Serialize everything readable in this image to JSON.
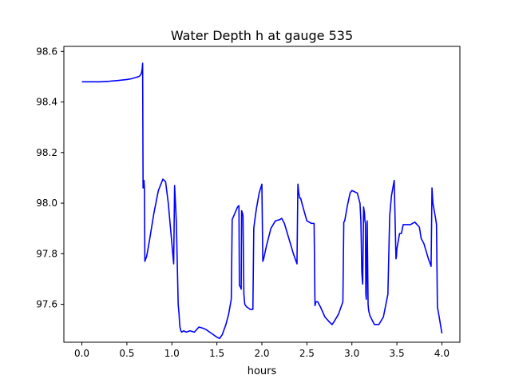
{
  "chart_data": {
    "type": "line",
    "title": "Water Depth h at gauge 535",
    "xlabel": "hours",
    "ylabel": "",
    "xlim": [
      -0.2,
      4.2
    ],
    "ylim": [
      97.45,
      98.62
    ],
    "xticks": [
      0.0,
      0.5,
      1.0,
      1.5,
      2.0,
      2.5,
      3.0,
      3.5,
      4.0
    ],
    "xtick_labels": [
      "0.0",
      "0.5",
      "1.0",
      "1.5",
      "2.0",
      "2.5",
      "3.0",
      "3.5",
      "4.0"
    ],
    "yticks": [
      97.6,
      97.8,
      98.0,
      98.2,
      98.4,
      98.6
    ],
    "ytick_labels": [
      "97.6",
      "97.8",
      "98.0",
      "98.2",
      "98.4",
      "98.6"
    ],
    "grid": false,
    "legend": "none",
    "colors": {
      "line": "#0000ff",
      "axes": "#000000",
      "background": "#ffffff"
    },
    "series": [
      {
        "x": [
          0.0,
          0.1,
          0.2,
          0.3,
          0.4,
          0.5,
          0.55,
          0.6,
          0.64,
          0.66,
          0.67,
          0.675,
          0.68,
          0.69,
          0.695,
          0.7,
          0.71,
          0.72,
          0.75,
          0.8,
          0.85,
          0.9,
          0.93,
          0.96,
          0.99,
          1.02,
          1.03,
          1.04,
          1.05,
          1.07,
          1.08,
          1.085,
          1.09,
          1.1,
          1.11,
          1.13,
          1.16,
          1.2,
          1.25,
          1.3,
          1.35,
          1.38,
          1.42,
          1.46,
          1.5,
          1.53,
          1.56,
          1.6,
          1.63,
          1.66,
          1.67,
          1.7,
          1.73,
          1.745,
          1.75,
          1.76,
          1.77,
          1.775,
          1.785,
          1.79,
          1.8,
          1.81,
          1.83,
          1.87,
          1.9,
          1.91,
          1.92,
          1.94,
          1.97,
          2.0,
          2.01,
          2.02,
          2.05,
          2.1,
          2.15,
          2.2,
          2.22,
          2.25,
          2.3,
          2.35,
          2.39,
          2.4,
          2.41,
          2.42,
          2.43,
          2.46,
          2.5,
          2.55,
          2.57,
          2.58,
          2.59,
          2.6,
          2.62,
          2.65,
          2.7,
          2.75,
          2.78,
          2.8,
          2.85,
          2.88,
          2.9,
          2.91,
          2.92,
          2.95,
          2.98,
          3.0,
          3.03,
          3.06,
          3.09,
          3.1,
          3.11,
          3.115,
          3.12,
          3.13,
          3.14,
          3.145,
          3.15,
          3.155,
          3.16,
          3.17,
          3.18,
          3.185,
          3.19,
          3.2,
          3.25,
          3.3,
          3.35,
          3.4,
          3.42,
          3.43,
          3.44,
          3.47,
          3.49,
          3.495,
          3.5,
          3.53,
          3.55,
          3.57,
          3.6,
          3.65,
          3.7,
          3.75,
          3.77,
          3.8,
          3.85,
          3.88,
          3.89,
          3.9,
          3.93,
          3.94,
          3.95,
          3.97,
          4.0
        ],
        "y": [
          98.48,
          98.48,
          98.48,
          98.482,
          98.485,
          98.489,
          98.492,
          98.497,
          98.502,
          98.512,
          98.53,
          98.553,
          98.06,
          98.09,
          98.06,
          97.77,
          97.78,
          97.79,
          97.85,
          97.96,
          98.05,
          98.095,
          98.085,
          98.0,
          97.88,
          97.76,
          98.07,
          98.0,
          97.92,
          97.6,
          97.56,
          97.53,
          97.51,
          97.495,
          97.49,
          97.495,
          97.49,
          97.495,
          97.49,
          97.51,
          97.505,
          97.5,
          97.49,
          97.48,
          97.47,
          97.465,
          97.48,
          97.52,
          97.56,
          97.62,
          97.935,
          97.96,
          97.985,
          97.99,
          97.675,
          97.67,
          97.66,
          97.97,
          97.96,
          97.95,
          97.64,
          97.6,
          97.59,
          97.58,
          97.58,
          97.9,
          97.93,
          97.98,
          98.04,
          98.075,
          97.77,
          97.78,
          97.83,
          97.9,
          97.93,
          97.935,
          97.94,
          97.92,
          97.86,
          97.8,
          97.76,
          98.075,
          98.04,
          98.02,
          98.02,
          97.98,
          97.93,
          97.92,
          97.92,
          97.92,
          97.595,
          97.61,
          97.61,
          97.59,
          97.55,
          97.53,
          97.52,
          97.53,
          97.56,
          97.59,
          97.61,
          97.925,
          97.93,
          97.99,
          98.04,
          98.05,
          98.045,
          98.04,
          98.0,
          97.93,
          97.73,
          97.7,
          97.68,
          97.985,
          97.96,
          97.93,
          97.92,
          97.64,
          97.62,
          97.93,
          97.6,
          97.58,
          97.57,
          97.555,
          97.52,
          97.52,
          97.55,
          97.64,
          97.95,
          97.99,
          98.03,
          98.09,
          97.78,
          97.79,
          97.82,
          97.88,
          97.88,
          97.915,
          97.915,
          97.915,
          97.925,
          97.905,
          97.86,
          97.84,
          97.78,
          97.75,
          98.06,
          98.0,
          97.94,
          97.915,
          97.59,
          97.55,
          97.485
        ]
      }
    ]
  }
}
